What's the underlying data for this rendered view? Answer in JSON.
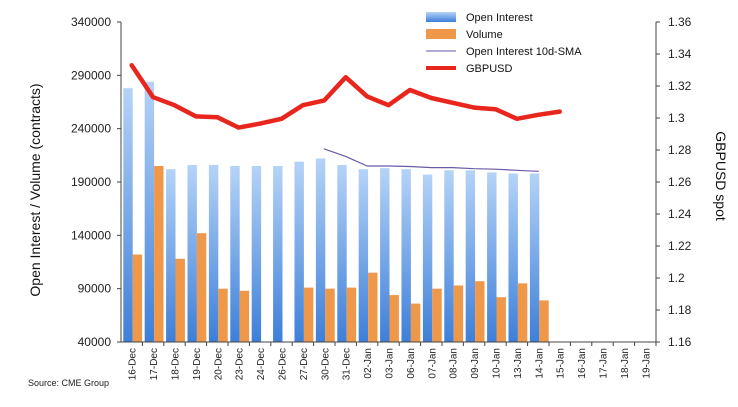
{
  "chart_data": {
    "type": "bar",
    "categories": [
      "16-Dec",
      "17-Dec",
      "18-Dec",
      "19-Dec",
      "20-Dec",
      "23-Dec",
      "24-Dec",
      "26-Dec",
      "27-Dec",
      "30-Dec",
      "31-Dec",
      "02-Jan",
      "03-Jan",
      "06-Jan",
      "07-Jan",
      "08-Jan",
      "09-Jan",
      "10-Jan",
      "13-Jan",
      "14-Jan",
      "15-Jan",
      "16-Jan",
      "17-Jan",
      "18-Jan",
      "19-Jan"
    ],
    "ylabel": "Open Interest / Volume (contracts)",
    "y2label": "GBPUSD spot",
    "ylim": [
      40000,
      340000
    ],
    "y2lim": [
      1.16,
      1.36
    ],
    "yticks": [
      "340000",
      "290000",
      "240000",
      "190000",
      "140000",
      "90000",
      "40000"
    ],
    "y2ticks": [
      "1.36",
      "1.34",
      "1.32",
      "1.3",
      "1.28",
      "1.26",
      "1.24",
      "1.22",
      "1.2",
      "1.18",
      "1.16"
    ],
    "legend_position": "top-center",
    "grid": false,
    "series": [
      {
        "name": "Open Interest",
        "kind": "bar",
        "axis": "left",
        "color": "#7fb2ee",
        "values": [
          278000,
          284000,
          202000,
          206000,
          206000,
          205000,
          205000,
          205000,
          209000,
          212000,
          206000,
          202000,
          203000,
          202000,
          197000,
          201000,
          201000,
          199000,
          198000,
          198000,
          null,
          null,
          null,
          null,
          null
        ]
      },
      {
        "name": "Volume",
        "kind": "bar",
        "axis": "left",
        "color": "#f0984a",
        "values": [
          122000,
          205000,
          118000,
          142000,
          90000,
          88000,
          null,
          null,
          91000,
          90000,
          91000,
          105000,
          84000,
          76000,
          90000,
          93000,
          97000,
          82000,
          95000,
          79000,
          null,
          null,
          null,
          null,
          null
        ]
      },
      {
        "name": "Open Interest 10d-SMA",
        "kind": "line",
        "axis": "left",
        "color": "#6a5aa8",
        "values": [
          null,
          null,
          null,
          null,
          null,
          null,
          null,
          null,
          null,
          221000,
          214000,
          205000,
          205000,
          204500,
          203500,
          203500,
          202500,
          202000,
          201000,
          200000,
          null,
          null,
          null,
          null,
          null
        ]
      },
      {
        "name": "GBPUSD",
        "kind": "line",
        "axis": "right",
        "color": "#e8261d",
        "values": [
          1.333,
          1.313,
          1.308,
          1.301,
          1.3005,
          1.294,
          1.2965,
          1.2995,
          1.308,
          1.311,
          1.3255,
          1.3135,
          1.308,
          1.3175,
          1.3125,
          1.3095,
          1.3065,
          1.3055,
          1.2995,
          1.302,
          1.304,
          null,
          null,
          null,
          null
        ]
      }
    ]
  },
  "source_text": "Source: CME Group"
}
